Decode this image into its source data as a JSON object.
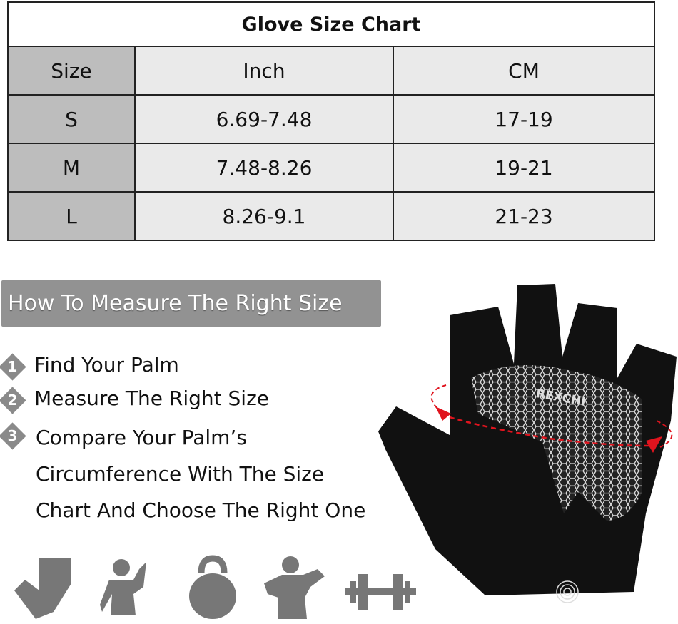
{
  "table": {
    "title": "Glove Size Chart",
    "headers": [
      "Size",
      "Inch",
      "CM"
    ],
    "rows": [
      [
        "S",
        "6.69-7.48",
        "17-19"
      ],
      [
        "M",
        "7.48-8.26",
        "19-21"
      ],
      [
        "L",
        "8.26-9.1",
        "21-23"
      ]
    ]
  },
  "guide": {
    "heading": "How To Measure The Right Size",
    "steps": [
      {
        "num": "1",
        "text": "Find Your Palm"
      },
      {
        "num": "2",
        "text": "Measure The Right Size"
      },
      {
        "num": "3",
        "text": "Compare Your Palm’s"
      }
    ],
    "step3_cont": [
      "Circumference With The Size",
      "Chart And Choose The Right One"
    ]
  },
  "product": {
    "brand": "REXCHI"
  },
  "icons": [
    "glove-icon",
    "woman-dumbbell-icon",
    "kettlebell-icon",
    "man-dumbbell-icon",
    "barbell-icon"
  ],
  "colors": {
    "banner": "#929292",
    "size_col": "#bdbdbd",
    "cell": "#eaeaea",
    "arrow": "#e0141e"
  }
}
